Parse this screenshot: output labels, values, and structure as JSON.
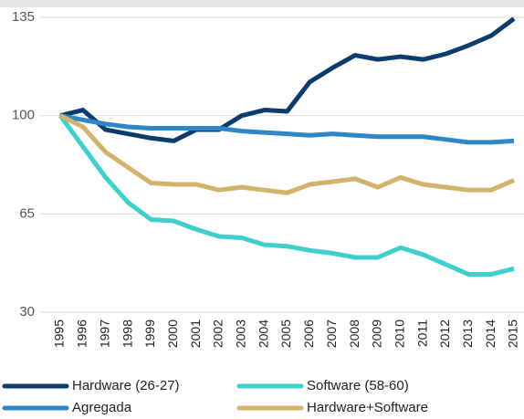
{
  "chart_data": {
    "type": "line",
    "categories": [
      "1995",
      "1996",
      "1997",
      "1998",
      "1999",
      "2000",
      "2001",
      "2002",
      "2003",
      "2004",
      "2005",
      "2006",
      "2007",
      "2008",
      "2009",
      "2010",
      "2011",
      "2012",
      "2013",
      "2014",
      "2015"
    ],
    "series": [
      {
        "name": "Hardware (26-27)",
        "color": "#0c3c6c",
        "values": [
          100,
          102,
          95,
          93.5,
          92,
          91,
          95,
          95,
          100,
          102,
          101.5,
          112,
          117,
          121.5,
          120,
          121,
          120,
          122,
          125,
          128.5,
          134.5
        ]
      },
      {
        "name": "Software (58-60)",
        "color": "#3ecfcc",
        "values": [
          100,
          89,
          78,
          69,
          63,
          62.5,
          59.5,
          57,
          56.5,
          54,
          53.5,
          52,
          51,
          49.5,
          49.5,
          53,
          50.5,
          47,
          43.5,
          43.5,
          45.5
        ]
      },
      {
        "name": "Agregada",
        "color": "#2f86c6",
        "values": [
          100,
          98.5,
          97,
          96,
          95.5,
          95.5,
          95.5,
          95.5,
          94.5,
          94,
          93.5,
          93,
          93.5,
          93,
          92.5,
          92.5,
          92.5,
          91.5,
          90.5,
          90.5,
          91
        ]
      },
      {
        "name": "Hardware+Software",
        "color": "#d3b36b",
        "values": [
          100,
          96,
          87,
          81.5,
          76,
          75.5,
          75.5,
          73.5,
          74.5,
          73.5,
          72.5,
          75.5,
          76.5,
          77.5,
          74.5,
          78,
          75.5,
          74.5,
          73.5,
          73.5,
          77
        ]
      }
    ],
    "ylim": [
      30,
      135
    ],
    "yticks": [
      30,
      65,
      100,
      135
    ],
    "grid": true
  }
}
